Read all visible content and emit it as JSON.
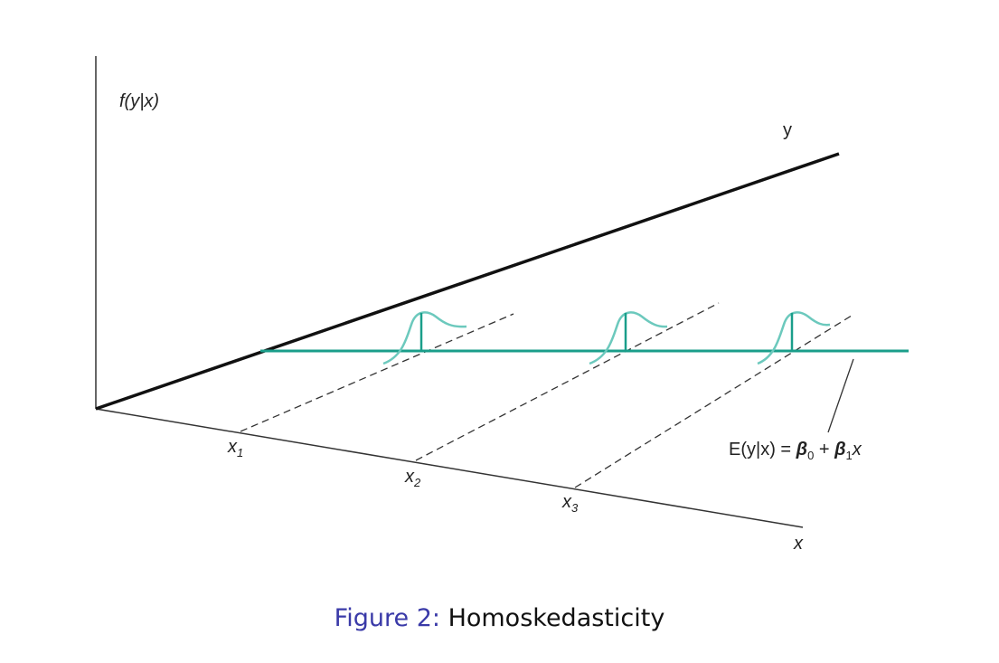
{
  "diagram": {
    "vertical_axis_label": "f(y|x)",
    "y_axis_label": "y",
    "x_axis_label": "x",
    "x_ticks": [
      {
        "base": "x",
        "sub": "1"
      },
      {
        "base": "x",
        "sub": "2"
      },
      {
        "base": "x",
        "sub": "3"
      }
    ],
    "regression_label": {
      "prefix": "E(y|x) = ",
      "beta": "β",
      "sub0": "0",
      "plus": " + ",
      "sub1": "1",
      "var": "x"
    },
    "colors": {
      "axes": "#222222",
      "regression_line": "#1a9e8a",
      "density_curve": "#6cc9bd",
      "dashed": "#333333"
    }
  },
  "caption": {
    "label": "Figure 2:",
    "text": "Homoskedasticity"
  }
}
